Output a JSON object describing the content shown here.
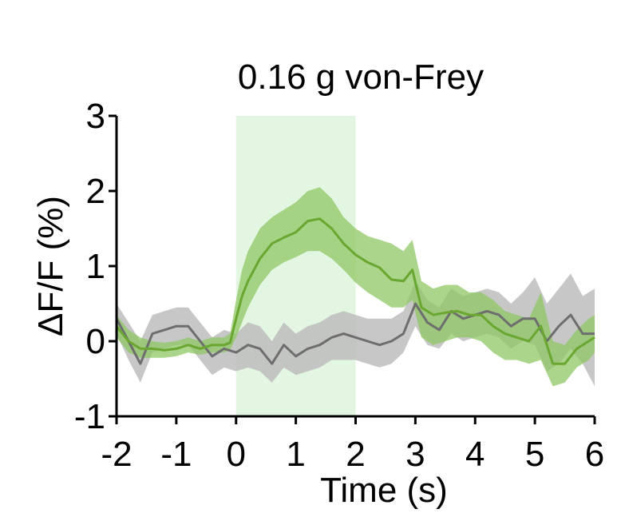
{
  "chart_data": {
    "type": "line",
    "title": "0.16 g von-Frey",
    "xlabel": "Time (s)",
    "ylabel": "ΔF/F (%)",
    "xlim": [
      -2,
      6
    ],
    "ylim": [
      -1,
      3
    ],
    "xticks": [
      "-2",
      "-1",
      "0",
      "1",
      "2",
      "3",
      "4",
      "5",
      "6"
    ],
    "yticks": [
      "-1",
      "0",
      "1",
      "2",
      "3"
    ],
    "grid": false,
    "stimulus_window": [
      0,
      2
    ],
    "colors": {
      "green_line": "#6aa730",
      "green_band": "#8ec763",
      "gray_line": "#6e6e6e",
      "gray_band": "#b9b9b9",
      "stimulus": "#e3f6e2"
    },
    "series": [
      {
        "color": "green",
        "x": [
          -2.0,
          -1.8,
          -1.6,
          -1.4,
          -1.2,
          -1.0,
          -0.8,
          -0.6,
          -0.4,
          -0.2,
          -0.1,
          0.0,
          0.1,
          0.2,
          0.4,
          0.6,
          0.8,
          1.0,
          1.2,
          1.4,
          1.6,
          1.8,
          2.0,
          2.2,
          2.4,
          2.6,
          2.8,
          2.95,
          3.1,
          3.3,
          3.5,
          3.7,
          3.9,
          4.1,
          4.3,
          4.5,
          4.7,
          4.9,
          5.1,
          5.3,
          5.5,
          5.7,
          5.9,
          6.0
        ],
        "y": [
          0.2,
          0.0,
          -0.1,
          -0.1,
          -0.12,
          -0.1,
          -0.05,
          -0.1,
          -0.05,
          -0.05,
          -0.02,
          0.3,
          0.6,
          0.8,
          1.1,
          1.3,
          1.38,
          1.45,
          1.6,
          1.63,
          1.5,
          1.3,
          1.15,
          1.05,
          0.98,
          0.82,
          0.8,
          0.95,
          0.45,
          0.35,
          0.38,
          0.4,
          0.35,
          0.35,
          0.2,
          0.1,
          0.05,
          0.0,
          0.2,
          -0.3,
          -0.3,
          -0.1,
          0.0,
          0.05
        ],
        "lower": [
          0.05,
          -0.15,
          -0.22,
          -0.22,
          -0.22,
          -0.2,
          -0.15,
          -0.18,
          -0.15,
          -0.15,
          -0.12,
          0.05,
          0.25,
          0.45,
          0.75,
          0.95,
          1.05,
          1.12,
          1.2,
          1.2,
          1.1,
          0.95,
          0.78,
          0.65,
          0.55,
          0.45,
          0.45,
          0.55,
          0.05,
          -0.05,
          0.0,
          0.05,
          0.05,
          0.0,
          -0.15,
          -0.25,
          -0.25,
          -0.3,
          -0.25,
          -0.6,
          -0.55,
          -0.35,
          -0.25,
          -0.15
        ],
        "upper": [
          0.35,
          0.15,
          0.05,
          0.0,
          -0.02,
          0.0,
          0.05,
          0.0,
          0.05,
          0.05,
          0.1,
          0.55,
          0.95,
          1.2,
          1.5,
          1.65,
          1.75,
          1.85,
          2.0,
          2.05,
          1.9,
          1.65,
          1.5,
          1.4,
          1.35,
          1.3,
          1.2,
          1.35,
          0.8,
          0.7,
          0.75,
          0.75,
          0.65,
          0.65,
          0.55,
          0.4,
          0.35,
          0.3,
          0.65,
          0.0,
          -0.05,
          0.15,
          0.3,
          0.35
        ]
      },
      {
        "color": "gray",
        "x": [
          -2.0,
          -1.8,
          -1.6,
          -1.4,
          -1.2,
          -1.0,
          -0.8,
          -0.6,
          -0.4,
          -0.2,
          0.0,
          0.2,
          0.4,
          0.6,
          0.8,
          1.0,
          1.2,
          1.4,
          1.6,
          1.8,
          2.0,
          2.2,
          2.4,
          2.6,
          2.8,
          3.0,
          3.2,
          3.4,
          3.6,
          3.8,
          4.0,
          4.2,
          4.4,
          4.6,
          4.8,
          5.0,
          5.2,
          5.4,
          5.6,
          5.8,
          6.0
        ],
        "y": [
          0.3,
          0.0,
          -0.3,
          0.1,
          0.15,
          0.2,
          0.2,
          0.0,
          -0.2,
          -0.1,
          -0.15,
          -0.05,
          -0.1,
          -0.3,
          -0.05,
          -0.2,
          -0.1,
          -0.05,
          0.05,
          0.1,
          0.05,
          0.0,
          -0.05,
          0.0,
          0.1,
          0.5,
          0.25,
          0.15,
          0.4,
          0.3,
          0.35,
          0.4,
          0.35,
          0.2,
          0.3,
          0.3,
          0.0,
          0.2,
          0.35,
          0.1,
          0.1
        ],
        "lower": [
          0.1,
          -0.25,
          -0.55,
          -0.15,
          -0.1,
          -0.05,
          -0.05,
          -0.25,
          -0.45,
          -0.35,
          -0.4,
          -0.35,
          -0.4,
          -0.55,
          -0.35,
          -0.45,
          -0.4,
          -0.35,
          -0.25,
          -0.25,
          -0.25,
          -0.3,
          -0.35,
          -0.3,
          -0.15,
          0.2,
          -0.05,
          -0.1,
          0.1,
          0.0,
          0.05,
          0.1,
          0.05,
          -0.1,
          0.0,
          -0.05,
          -0.4,
          -0.3,
          -0.1,
          -0.3,
          -0.6
        ],
        "upper": [
          0.5,
          0.25,
          0.0,
          0.35,
          0.4,
          0.45,
          0.45,
          0.25,
          0.05,
          0.15,
          0.1,
          0.25,
          0.2,
          0.0,
          0.25,
          0.1,
          0.2,
          0.25,
          0.35,
          0.4,
          0.35,
          0.3,
          0.3,
          0.3,
          0.4,
          0.8,
          0.55,
          0.45,
          0.7,
          0.6,
          0.65,
          0.7,
          0.65,
          0.5,
          0.65,
          0.85,
          0.5,
          0.7,
          0.9,
          0.6,
          0.7
        ]
      }
    ]
  }
}
